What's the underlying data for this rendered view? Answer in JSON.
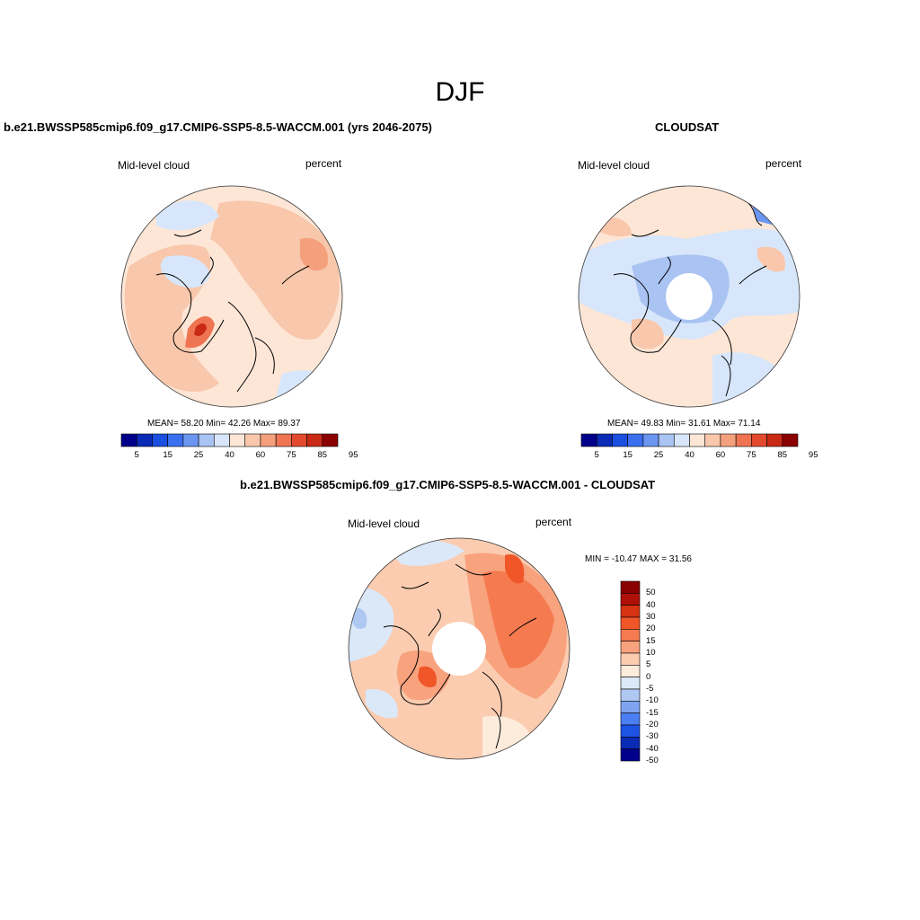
{
  "main_title": "DJF",
  "panels": [
    {
      "title": "b.e21.BWSSP585cmip6.f09_g17.CMIP6-SSP5-8.5-WACCM.001 (yrs 2046-2075)",
      "variable": "Mid-level cloud",
      "units": "percent",
      "stats": "MEAN=  58.20  Min=  42.26  Max=  89.37",
      "colorbar_ticks": [
        "5",
        "15",
        "25",
        "40",
        "60",
        "75",
        "85",
        "95"
      ]
    },
    {
      "title": "CLOUDSAT",
      "variable": "Mid-level cloud",
      "units": "percent",
      "stats": "MEAN=  49.83  Min=  31.61  Max=  71.14",
      "colorbar_ticks": [
        "5",
        "15",
        "25",
        "40",
        "60",
        "75",
        "85",
        "95"
      ]
    },
    {
      "title": "b.e21.BWSSP585cmip6.f09_g17.CMIP6-SSP5-8.5-WACCM.001 - CLOUDSAT",
      "variable": "Mid-level cloud",
      "units": "percent",
      "stats": "MIN = -10.47 MAX =  31.56",
      "colorbar_ticks": [
        "50",
        "40",
        "30",
        "20",
        "15",
        "10",
        "5",
        "0",
        "-5",
        "-10",
        "-15",
        "-20",
        "-30",
        "-40",
        "-50"
      ]
    }
  ],
  "colors": {
    "abs_palette": [
      "#00008b",
      "#0a2bb5",
      "#1a4fe0",
      "#3a6ff0",
      "#6a95f0",
      "#a9c3f2",
      "#d7e6fa",
      "#fde6d6",
      "#f9c7ab",
      "#f5a07d",
      "#ee7452",
      "#e24a2e",
      "#c92a16",
      "#8b0000"
    ],
    "diff_palette": [
      "#8b0000",
      "#b01008",
      "#d63314",
      "#f05628",
      "#f57a50",
      "#f8a27e",
      "#fbccb0",
      "#fdebdc",
      "#dbe8f8",
      "#aec8f2",
      "#7ea3ef",
      "#4b7ef2",
      "#1e54e6",
      "#0a2bb5",
      "#00008b"
    ]
  }
}
